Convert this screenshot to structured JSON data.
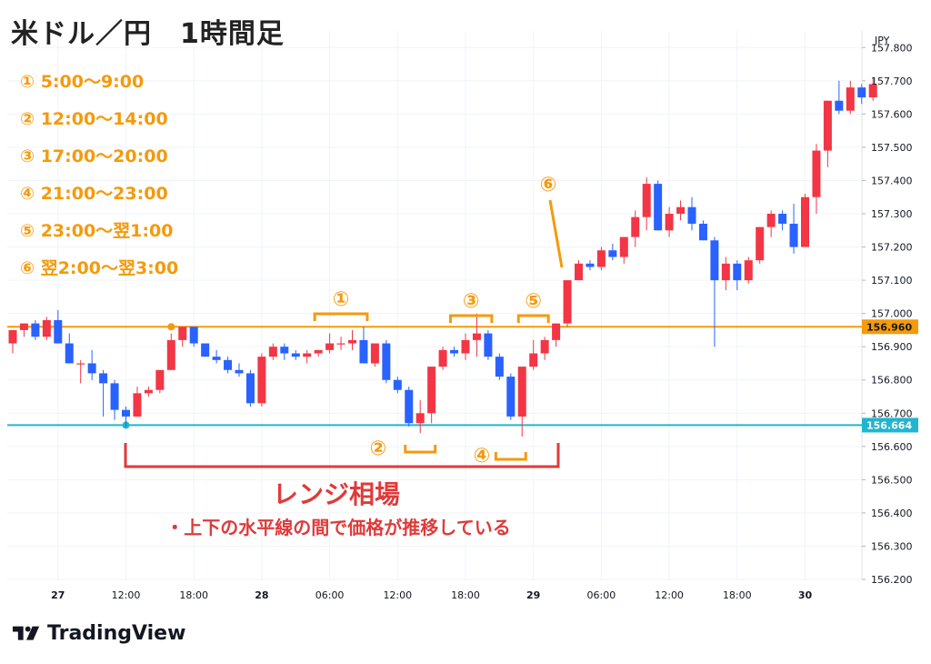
{
  "header": {
    "title": "米ドル／円　1時間足",
    "brand": "TradingView"
  },
  "legend": [
    "① 5:00〜9:00",
    "② 12:00〜14:00",
    "③ 17:00〜20:00",
    "④ 21:00〜23:00",
    "⑤ 23:00〜翌1:00",
    "⑥ 翌2:00〜翌3:00"
  ],
  "annotations": {
    "range_title": "レンジ相場",
    "range_desc": "・上下の水平線の間で価格が推移している",
    "markers": [
      "①",
      "②",
      "③",
      "④",
      "⑤",
      "⑥"
    ]
  },
  "colors": {
    "up": "#f23645",
    "down": "#2962ff",
    "upper_line": "#f59a0b",
    "lower_line": "#22b5cf",
    "annotation_red": "#e03a3a",
    "annotation_orange": "#f59a0b"
  },
  "chart_data": {
    "type": "candlestick",
    "currency": "JPY",
    "ylim": [
      156.2,
      157.85
    ],
    "y_ticks": [
      "157.800",
      "157.700",
      "157.600",
      "157.500",
      "157.400",
      "157.300",
      "157.200",
      "157.100",
      "157.000",
      "156.900",
      "156.800",
      "156.700",
      "156.600",
      "156.500",
      "156.400",
      "156.300",
      "156.200"
    ],
    "x_ticks": [
      {
        "index": 4,
        "label": "27",
        "bold": true
      },
      {
        "index": 10,
        "label": "12:00",
        "bold": false
      },
      {
        "index": 16,
        "label": "18:00",
        "bold": false
      },
      {
        "index": 22,
        "label": "28",
        "bold": true
      },
      {
        "index": 28,
        "label": "06:00",
        "bold": false
      },
      {
        "index": 34,
        "label": "12:00",
        "bold": false
      },
      {
        "index": 40,
        "label": "18:00",
        "bold": false
      },
      {
        "index": 46,
        "label": "29",
        "bold": true
      },
      {
        "index": 52,
        "label": "06:00",
        "bold": false
      },
      {
        "index": 58,
        "label": "12:00",
        "bold": false
      },
      {
        "index": 64,
        "label": "18:00",
        "bold": false
      },
      {
        "index": 70,
        "label": "30",
        "bold": true
      }
    ],
    "hlines": [
      {
        "value": 156.96,
        "label": "156.960",
        "color": "#f59a0b"
      },
      {
        "value": 156.664,
        "label": "156.664",
        "color": "#22b5cf"
      }
    ],
    "candles": [
      [
        156.91,
        156.95,
        156.88,
        156.95
      ],
      [
        156.95,
        156.97,
        156.93,
        156.97
      ],
      [
        156.97,
        156.98,
        156.92,
        156.93
      ],
      [
        156.93,
        156.99,
        156.92,
        156.98
      ],
      [
        156.98,
        157.01,
        156.91,
        156.91
      ],
      [
        156.91,
        156.94,
        156.85,
        156.85
      ],
      [
        156.85,
        156.86,
        156.79,
        156.85
      ],
      [
        156.85,
        156.89,
        156.8,
        156.82
      ],
      [
        156.82,
        156.83,
        156.69,
        156.79
      ],
      [
        156.79,
        156.8,
        156.68,
        156.71
      ],
      [
        156.71,
        156.72,
        156.66,
        156.69
      ],
      [
        156.69,
        156.78,
        156.69,
        156.76
      ],
      [
        156.76,
        156.78,
        156.75,
        156.77
      ],
      [
        156.77,
        156.83,
        156.76,
        156.83
      ],
      [
        156.83,
        156.94,
        156.83,
        156.92
      ],
      [
        156.92,
        156.96,
        156.9,
        156.96
      ],
      [
        156.96,
        156.96,
        156.9,
        156.91
      ],
      [
        156.91,
        156.9,
        156.87,
        156.87
      ],
      [
        156.87,
        156.89,
        156.85,
        156.86
      ],
      [
        156.86,
        156.87,
        156.82,
        156.83
      ],
      [
        156.83,
        156.85,
        156.81,
        156.82
      ],
      [
        156.82,
        156.83,
        156.72,
        156.73
      ],
      [
        156.73,
        156.88,
        156.72,
        156.87
      ],
      [
        156.87,
        156.91,
        156.86,
        156.9
      ],
      [
        156.9,
        156.91,
        156.86,
        156.88
      ],
      [
        156.88,
        156.89,
        156.86,
        156.87
      ],
      [
        156.87,
        156.89,
        156.85,
        156.88
      ],
      [
        156.88,
        156.89,
        156.87,
        156.89
      ],
      [
        156.89,
        156.94,
        156.88,
        156.91
      ],
      [
        156.91,
        156.93,
        156.89,
        156.91
      ],
      [
        156.91,
        156.95,
        156.89,
        156.92
      ],
      [
        156.92,
        156.96,
        156.85,
        156.85
      ],
      [
        156.85,
        156.91,
        156.84,
        156.91
      ],
      [
        156.91,
        156.92,
        156.79,
        156.8
      ],
      [
        156.8,
        156.81,
        156.76,
        156.77
      ],
      [
        156.77,
        156.78,
        156.66,
        156.67
      ],
      [
        156.67,
        156.74,
        156.64,
        156.7
      ],
      [
        156.7,
        156.84,
        156.67,
        156.84
      ],
      [
        156.84,
        156.9,
        156.83,
        156.89
      ],
      [
        156.89,
        156.9,
        156.87,
        156.88
      ],
      [
        156.88,
        156.94,
        156.86,
        156.92
      ],
      [
        156.92,
        157.0,
        156.87,
        156.94
      ],
      [
        156.94,
        156.95,
        156.86,
        156.87
      ],
      [
        156.87,
        156.88,
        156.8,
        156.81
      ],
      [
        156.81,
        156.82,
        156.68,
        156.69
      ],
      [
        156.69,
        156.84,
        156.63,
        156.84
      ],
      [
        156.84,
        156.92,
        156.83,
        156.88
      ],
      [
        156.88,
        156.93,
        156.86,
        156.92
      ],
      [
        156.92,
        156.97,
        156.9,
        156.97
      ],
      [
        156.97,
        157.1,
        156.96,
        157.1
      ],
      [
        157.1,
        157.16,
        157.1,
        157.15
      ],
      [
        157.15,
        157.16,
        157.13,
        157.14
      ],
      [
        157.14,
        157.2,
        157.13,
        157.19
      ],
      [
        157.19,
        157.21,
        157.16,
        157.17
      ],
      [
        157.17,
        157.23,
        157.15,
        157.23
      ],
      [
        157.23,
        157.31,
        157.2,
        157.29
      ],
      [
        157.29,
        157.41,
        157.25,
        157.39
      ],
      [
        157.39,
        157.4,
        157.25,
        157.25
      ],
      [
        157.25,
        157.32,
        157.23,
        157.3
      ],
      [
        157.3,
        157.34,
        157.28,
        157.32
      ],
      [
        157.32,
        157.35,
        157.25,
        157.27
      ],
      [
        157.27,
        157.28,
        157.22,
        157.22
      ],
      [
        157.22,
        157.23,
        156.9,
        157.1
      ],
      [
        157.1,
        157.17,
        157.07,
        157.15
      ],
      [
        157.15,
        157.16,
        157.07,
        157.1
      ],
      [
        157.1,
        157.17,
        157.09,
        157.16
      ],
      [
        157.16,
        157.26,
        157.15,
        157.26
      ],
      [
        157.26,
        157.31,
        157.23,
        157.3
      ],
      [
        157.3,
        157.31,
        157.25,
        157.27
      ],
      [
        157.27,
        157.33,
        157.18,
        157.2
      ],
      [
        157.2,
        157.36,
        157.2,
        157.35
      ],
      [
        157.35,
        157.51,
        157.3,
        157.49
      ],
      [
        157.49,
        157.64,
        157.44,
        157.64
      ],
      [
        157.64,
        157.7,
        157.6,
        157.61
      ],
      [
        157.61,
        157.7,
        157.6,
        157.68
      ],
      [
        157.68,
        157.69,
        157.63,
        157.65
      ],
      [
        157.65,
        157.71,
        157.64,
        157.69
      ]
    ]
  }
}
